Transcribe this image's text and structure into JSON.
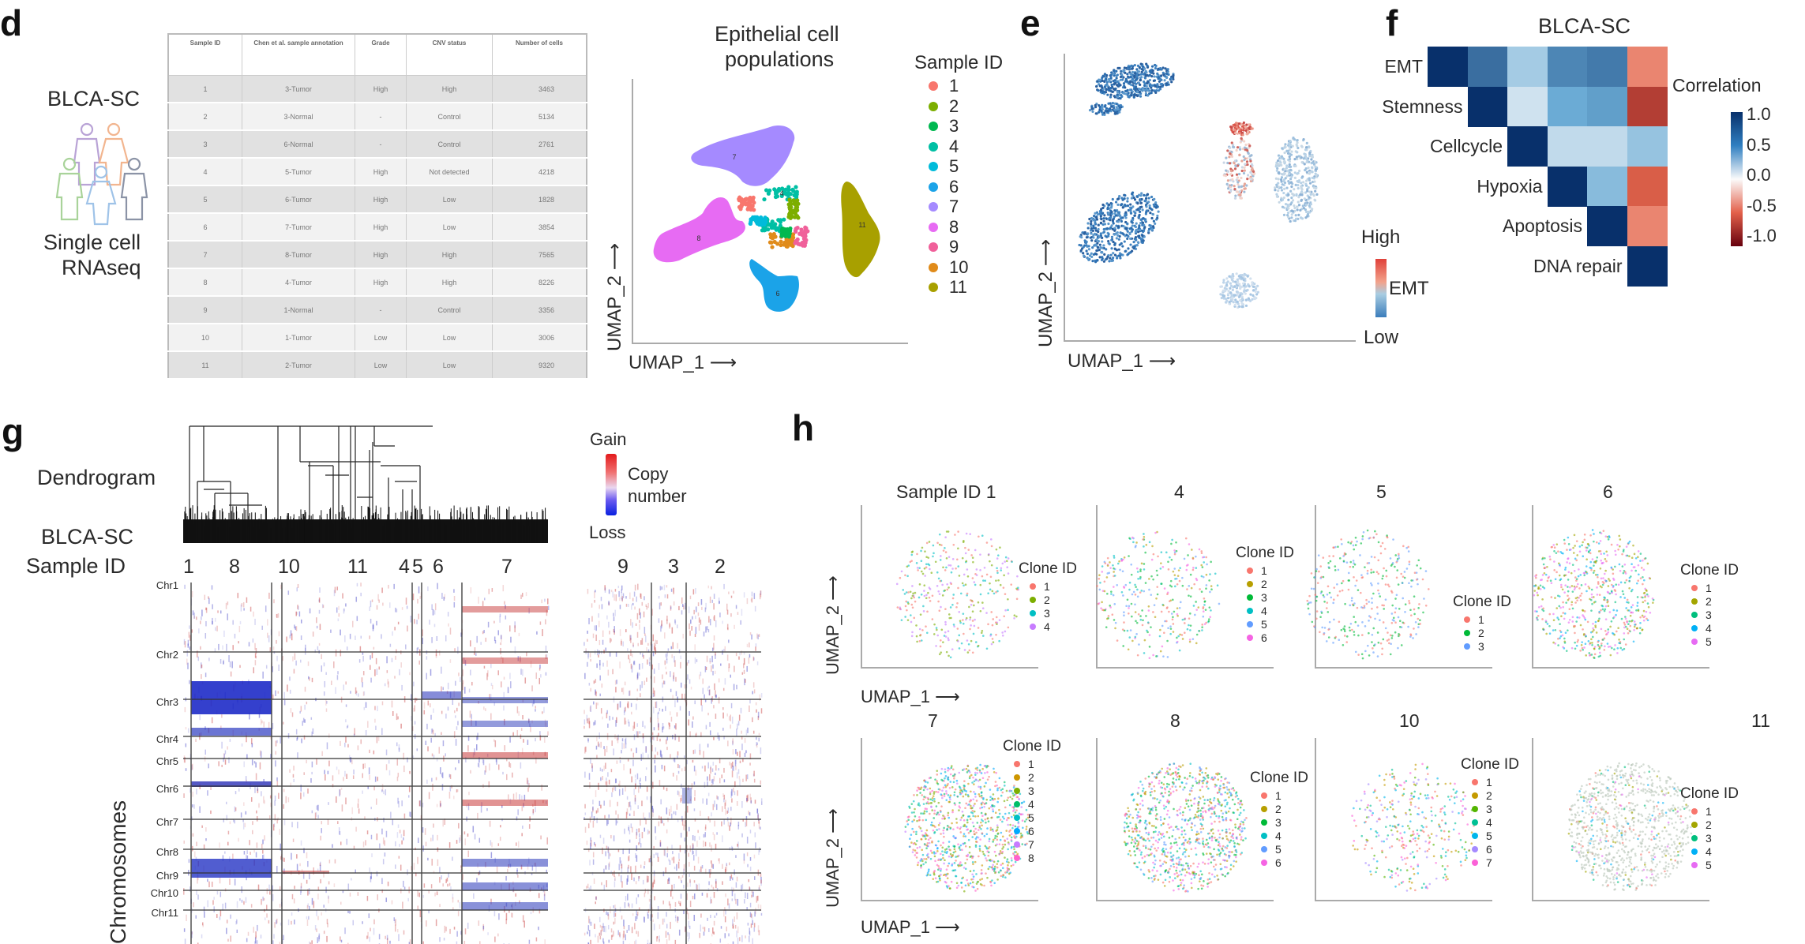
{
  "panel_labels": {
    "d": "d",
    "e": "e",
    "f": "f",
    "g": "g",
    "h": "h"
  },
  "panel_d": {
    "cohort_title": "BLCA-SC",
    "cohort_subtitle_line1": "Single cell",
    "cohort_subtitle_line2": "RNAseq",
    "table": {
      "headers": [
        "Sample ID",
        "Chen et al. sample annotation",
        "Grade",
        "CNV status",
        "Number of cells"
      ],
      "rows": [
        [
          "1",
          "3-Tumor",
          "High",
          "High",
          "3463"
        ],
        [
          "2",
          "3-Normal",
          "-",
          "Control",
          "5134"
        ],
        [
          "3",
          "6-Normal",
          "-",
          "Control",
          "2761"
        ],
        [
          "4",
          "5-Tumor",
          "High",
          "Not detected",
          "4218"
        ],
        [
          "5",
          "6-Tumor",
          "High",
          "Low",
          "1828"
        ],
        [
          "6",
          "7-Tumor",
          "High",
          "Low",
          "3854"
        ],
        [
          "7",
          "8-Tumor",
          "High",
          "High",
          "7565"
        ],
        [
          "8",
          "4-Tumor",
          "High",
          "High",
          "8226"
        ],
        [
          "9",
          "1-Normal",
          "-",
          "Control",
          "3356"
        ],
        [
          "10",
          "1-Tumor",
          "Low",
          "Low",
          "3006"
        ],
        [
          "11",
          "2-Tumor",
          "Low",
          "Low",
          "9320"
        ]
      ]
    },
    "umap_title_line1": "Epithelial cell",
    "umap_title_line2": "populations",
    "xlabel": "UMAP_1",
    "ylabel": "UMAP_2",
    "legend_title": "Sample ID",
    "legend": [
      {
        "label": "1",
        "color": "#f8766d"
      },
      {
        "label": "2",
        "color": "#7cae00"
      },
      {
        "label": "3",
        "color": "#00b850"
      },
      {
        "label": "4",
        "color": "#00bfa4"
      },
      {
        "label": "5",
        "color": "#00bbda"
      },
      {
        "label": "6",
        "color": "#1ba3e8"
      },
      {
        "label": "7",
        "color": "#a58aff"
      },
      {
        "label": "8",
        "color": "#e76bf3"
      },
      {
        "label": "9",
        "color": "#f0609a"
      },
      {
        "label": "10",
        "color": "#e08b1a"
      },
      {
        "label": "11",
        "color": "#a8a000"
      }
    ],
    "cluster_labels": [
      "7",
      "8",
      "6",
      "11",
      "4"
    ]
  },
  "panel_e": {
    "xlabel": "UMAP_1",
    "ylabel": "UMAP_2",
    "colorbar_high": "High",
    "colorbar_low": "Low",
    "colorbar_title": "EMT"
  },
  "chart_data": {
    "type": "heatmap",
    "title": "BLCA-SC",
    "legend_title": "Correlation",
    "legend_ticks": [
      "1.0",
      "0.5",
      "0.0",
      "-0.5",
      "-1.0"
    ],
    "value_range": [
      -1.0,
      1.0
    ],
    "variables": [
      "EMT",
      "Stemness",
      "Cellcycle",
      "Hypoxia",
      "Apoptosis",
      "DNA repair"
    ],
    "matrix_upper": [
      [
        1.0,
        0.75,
        0.3,
        0.65,
        0.7,
        -0.4
      ],
      [
        null,
        1.0,
        0.15,
        0.5,
        0.55,
        -0.7
      ],
      [
        null,
        null,
        1.0,
        0.2,
        0.2,
        0.35
      ],
      [
        null,
        null,
        null,
        1.0,
        0.4,
        -0.55
      ],
      [
        null,
        null,
        null,
        null,
        1.0,
        -0.4
      ],
      [
        null,
        null,
        null,
        null,
        null,
        1.0
      ]
    ]
  },
  "panel_g": {
    "dendrogram_label": "Dendrogram",
    "cohort_label": "BLCA-SC",
    "sample_label": "Sample ID",
    "sample_ids_left": [
      "1",
      "8",
      "10",
      "11",
      "4",
      "5",
      "6",
      "7"
    ],
    "sample_ids_right": [
      "9",
      "3",
      "2"
    ],
    "chromosomes": [
      "Chr1",
      "Chr2",
      "Chr3",
      "Chr4",
      "Chr5",
      "Chr6",
      "Chr7",
      "Chr8",
      "Chr9",
      "Chr10",
      "Chr11"
    ],
    "yaxis_label": "Chromosomes",
    "legend_gain": "Gain",
    "legend_loss": "Loss",
    "legend_title_line1": "Copy",
    "legend_title_line2": "number"
  },
  "panel_h": {
    "xlabel": "UMAP_1",
    "ylabel": "UMAP_2",
    "legend_title": "Clone ID",
    "plots": [
      {
        "title": "Sample ID 1",
        "clones": [
          {
            "label": "1",
            "color": "#f8766d"
          },
          {
            "label": "2",
            "color": "#7cae00"
          },
          {
            "label": "3",
            "color": "#00bfc4"
          },
          {
            "label": "4",
            "color": "#c77cff"
          }
        ]
      },
      {
        "title": "4",
        "clones": [
          {
            "label": "1",
            "color": "#f8766d"
          },
          {
            "label": "2",
            "color": "#b79f00"
          },
          {
            "label": "3",
            "color": "#00ba38"
          },
          {
            "label": "4",
            "color": "#00bfc4"
          },
          {
            "label": "5",
            "color": "#619cff"
          },
          {
            "label": "6",
            "color": "#f564e3"
          }
        ]
      },
      {
        "title": "5",
        "clones": [
          {
            "label": "1",
            "color": "#f8766d"
          },
          {
            "label": "2",
            "color": "#00ba38"
          },
          {
            "label": "3",
            "color": "#619cff"
          }
        ]
      },
      {
        "title": "6",
        "clones": [
          {
            "label": "1",
            "color": "#f8766d"
          },
          {
            "label": "2",
            "color": "#a3a500"
          },
          {
            "label": "3",
            "color": "#00bf7d"
          },
          {
            "label": "4",
            "color": "#00b0f6"
          },
          {
            "label": "5",
            "color": "#e76bf3"
          }
        ]
      },
      {
        "title": "7",
        "clones": [
          {
            "label": "1",
            "color": "#f8766d"
          },
          {
            "label": "2",
            "color": "#cd9600"
          },
          {
            "label": "3",
            "color": "#7cae00"
          },
          {
            "label": "4",
            "color": "#00be67"
          },
          {
            "label": "5",
            "color": "#00bfc4"
          },
          {
            "label": "6",
            "color": "#00a9ff"
          },
          {
            "label": "7",
            "color": "#c77cff"
          },
          {
            "label": "8",
            "color": "#ff61cc"
          }
        ]
      },
      {
        "title": "8",
        "clones": [
          {
            "label": "1",
            "color": "#f8766d"
          },
          {
            "label": "2",
            "color": "#b79f00"
          },
          {
            "label": "3",
            "color": "#00ba38"
          },
          {
            "label": "4",
            "color": "#00bfc4"
          },
          {
            "label": "5",
            "color": "#619cff"
          },
          {
            "label": "6",
            "color": "#f564e3"
          }
        ]
      },
      {
        "title": "10",
        "clones": [
          {
            "label": "1",
            "color": "#f8766d"
          },
          {
            "label": "2",
            "color": "#c49a00"
          },
          {
            "label": "3",
            "color": "#53b400"
          },
          {
            "label": "4",
            "color": "#00c094"
          },
          {
            "label": "5",
            "color": "#00b6eb"
          },
          {
            "label": "6",
            "color": "#a58aff"
          },
          {
            "label": "7",
            "color": "#fb61d7"
          }
        ]
      },
      {
        "title": "11",
        "clones": [
          {
            "label": "1",
            "color": "#f8766d"
          },
          {
            "label": "2",
            "color": "#a3a500"
          },
          {
            "label": "3",
            "color": "#00bf7d"
          },
          {
            "label": "4",
            "color": "#00b0f6"
          },
          {
            "label": "5",
            "color": "#e76bf3"
          }
        ]
      }
    ]
  }
}
